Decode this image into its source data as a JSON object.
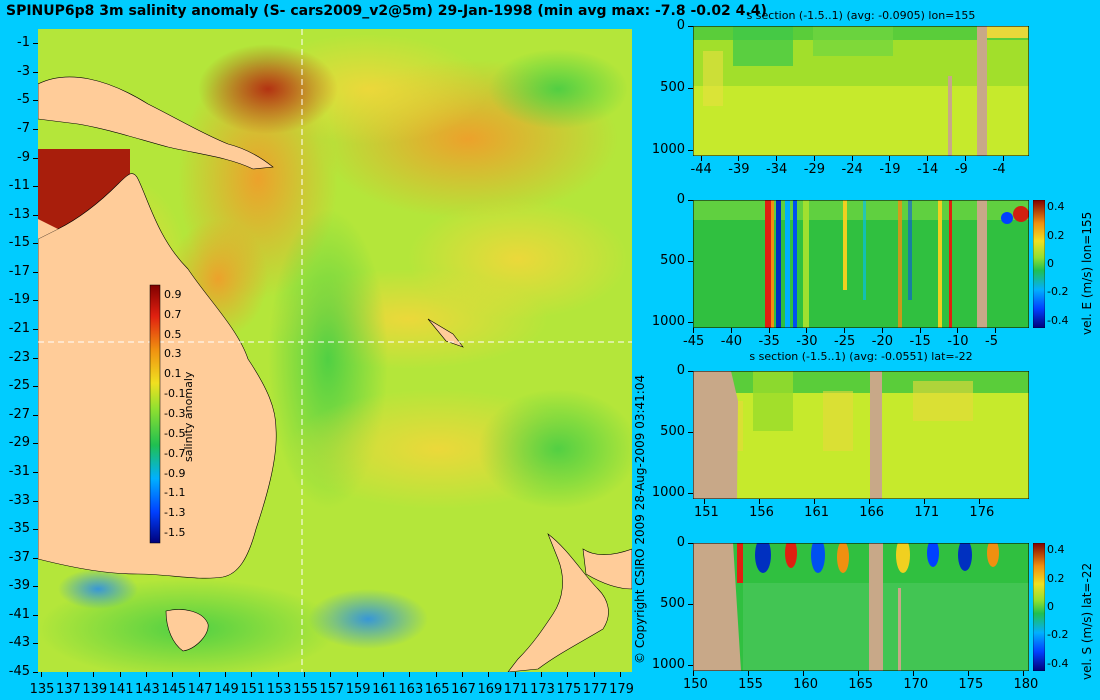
{
  "title": "SPINUP6p8 3m salinity anomaly (S- cars2009_v2@5m) 29-Jan-1998 (min avg max: -7.8 -0.02 4.4)",
  "copyright": "© Copyright CSIRO 2009   28-Aug-2009 03:41:04",
  "colors": {
    "background": "#00ccff",
    "land": "#ffcc99",
    "section_land": "#c8a888"
  },
  "chart_data": [
    {
      "type": "heatmap",
      "name": "salinity-map",
      "title": "SPINUP6p8 3m salinity anomaly (S- cars2009_v2@5m) 29-Jan-1998 (min avg max: -7.8 -0.02 4.4)",
      "x_ticks": [
        "135",
        "137",
        "139",
        "141",
        "143",
        "145",
        "147",
        "149",
        "151",
        "153",
        "155",
        "157",
        "159",
        "161",
        "163",
        "165",
        "167",
        "169",
        "171",
        "173",
        "175",
        "177",
        "179"
      ],
      "y_ticks": [
        "-1",
        "-3",
        "-5",
        "-7",
        "-9",
        "-11",
        "-13",
        "-15",
        "-17",
        "-19",
        "-21",
        "-23",
        "-25",
        "-27",
        "-29",
        "-31",
        "-33",
        "-35",
        "-37",
        "-39",
        "-41",
        "-43",
        "-45"
      ],
      "xlim": [
        134.8,
        179.9
      ],
      "ylim": [
        -45,
        0
      ],
      "section_lines": {
        "lon": 155,
        "lat": -22
      },
      "colorbar": {
        "label": "salinity anomaly",
        "ticks": [
          "0.9",
          "0.7",
          "0.5",
          "0.3",
          "0.1",
          "-0.1",
          "-0.3",
          "-0.5",
          "-0.7",
          "-0.9",
          "-1.1",
          "-1.3",
          "-1.5"
        ],
        "range": [
          -1.6,
          1.0
        ]
      }
    },
    {
      "type": "heatmap",
      "name": "s-section-lon",
      "title": "s section (-1.5..1) (avg: -0.0905) lon=155",
      "x_ticks": [
        "-44",
        "-39",
        "-34",
        "-29",
        "-24",
        "-19",
        "-14",
        "-9",
        "-4"
      ],
      "y_ticks": [
        "0",
        "500",
        "1000"
      ],
      "xlim": [
        -45,
        -0.5
      ],
      "ylim": [
        1050,
        0
      ]
    },
    {
      "type": "heatmap",
      "name": "vel-e-section",
      "title": "",
      "x_ticks": [
        "-45",
        "-40",
        "-35",
        "-30",
        "-25",
        "-20",
        "-15",
        "-10",
        "-5"
      ],
      "y_ticks": [
        "0",
        "500",
        "1000"
      ],
      "xlim": [
        -45,
        -0.5
      ],
      "ylim": [
        1050,
        0
      ],
      "colorbar": {
        "label": "vel. E (m/s) lon=155",
        "ticks": [
          "0.4",
          "0.2",
          "0",
          "-0.2",
          "-0.4"
        ],
        "range": [
          -0.45,
          0.45
        ]
      }
    },
    {
      "type": "heatmap",
      "name": "s-section-lat",
      "title": "s section (-1.5..1) (avg: -0.0551) lat=-22",
      "x_ticks": [
        "151",
        "156",
        "161",
        "166",
        "171",
        "176"
      ],
      "y_ticks": [
        "0",
        "500",
        "1000"
      ],
      "xlim": [
        150,
        180.5
      ],
      "ylim": [
        1050,
        0
      ]
    },
    {
      "type": "heatmap",
      "name": "vel-s-section",
      "title": "",
      "x_ticks": [
        "150",
        "155",
        "160",
        "165",
        "170",
        "175",
        "180"
      ],
      "y_ticks": [
        "0",
        "500",
        "1000"
      ],
      "xlim": [
        150,
        180.5
      ],
      "ylim": [
        1050,
        0
      ],
      "colorbar": {
        "label": "vel. S (m/s) lat=-22",
        "ticks": [
          "0.4",
          "0.2",
          "0",
          "-0.2",
          "-0.4"
        ],
        "range": [
          -0.45,
          0.45
        ]
      }
    }
  ]
}
